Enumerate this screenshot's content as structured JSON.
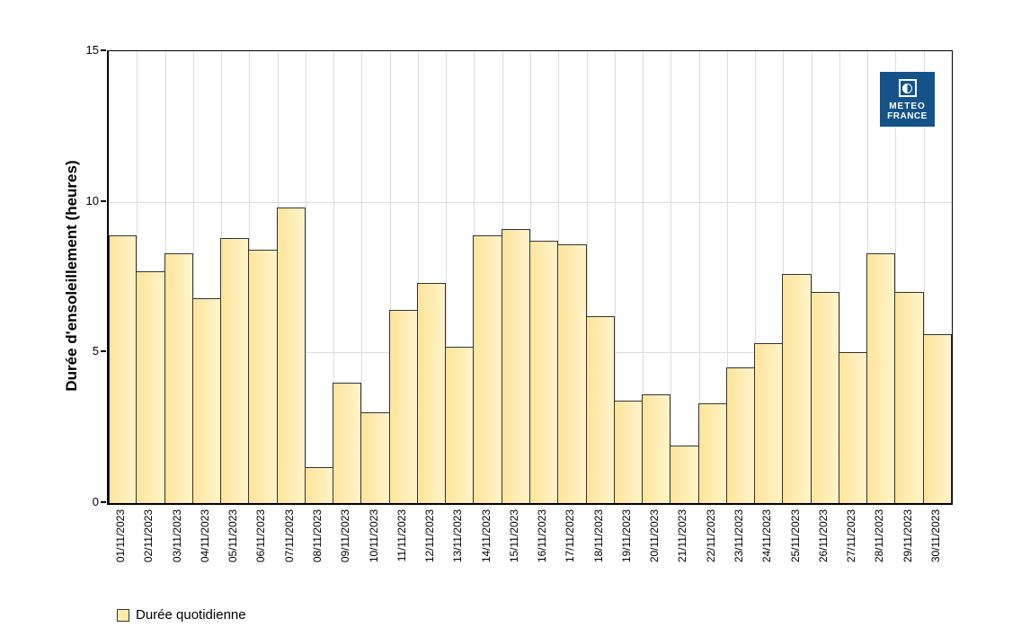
{
  "logo": {
    "line1": "METEO",
    "line2": "FRANCE",
    "background_color": "#14528A",
    "icon": "meteo-france-sun-circle-icon"
  },
  "legend": {
    "label": "Durée quotidienne",
    "swatch_color": "#FFEBA8"
  },
  "colors": {
    "bar_fill_left": "#FFE49A",
    "bar_fill_right": "#FFF4CA",
    "bar_border": "#333333",
    "gridline": "#DCDCDC",
    "axis": "#000000"
  },
  "chart_data": {
    "type": "bar",
    "title": "",
    "xlabel": "",
    "ylabel": "Durée d'ensoleillement (heures)",
    "ylim": [
      0,
      15
    ],
    "yticks": [
      0,
      5,
      10,
      15
    ],
    "grid": true,
    "legend_position": "bottom-left",
    "series_name": "Durée quotidienne",
    "categories": [
      "01/11/2023",
      "02/11/2023",
      "03/11/2023",
      "04/11/2023",
      "05/11/2023",
      "06/11/2023",
      "07/11/2023",
      "08/11/2023",
      "09/11/2023",
      "10/11/2023",
      "11/11/2023",
      "12/11/2023",
      "13/11/2023",
      "14/11/2023",
      "15/11/2023",
      "16/11/2023",
      "17/11/2023",
      "18/11/2023",
      "19/11/2023",
      "20/11/2023",
      "21/11/2023",
      "22/11/2023",
      "23/11/2023",
      "24/11/2023",
      "25/11/2023",
      "26/11/2023",
      "27/11/2023",
      "28/11/2023",
      "29/11/2023",
      "30/11/2023"
    ],
    "values": [
      8.9,
      7.7,
      8.3,
      6.8,
      8.8,
      8.4,
      9.8,
      1.2,
      4.0,
      3.0,
      6.4,
      7.3,
      5.2,
      8.9,
      9.1,
      8.7,
      8.6,
      6.2,
      3.4,
      3.6,
      1.9,
      3.3,
      4.5,
      5.3,
      7.6,
      7.0,
      5.0,
      8.3,
      7.0,
      5.6
    ]
  }
}
